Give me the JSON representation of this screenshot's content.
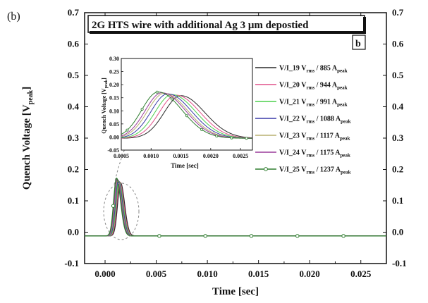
{
  "panel_label": "(b)",
  "chart_data": [
    {
      "type": "line",
      "title": "2G HTS wire with additional Ag 3 μm depostied",
      "corner_label": "b",
      "xlabel": "Time [sec]",
      "ylabel": "Quench Voltage [V",
      "ylabel_sub": "peak",
      "ylabel_end": "]",
      "xlim": [
        -0.002,
        0.0275
      ],
      "ylim": [
        -0.1,
        0.7
      ],
      "xticks": [
        0.0,
        0.005,
        0.01,
        0.015,
        0.02,
        0.025
      ],
      "xtick_labels": [
        "0.000",
        "0.005",
        "0.010",
        "0.015",
        "0.020",
        "0.025"
      ],
      "yticks": [
        -0.1,
        0.0,
        0.1,
        0.2,
        0.3,
        0.4,
        0.5,
        0.6,
        0.7
      ],
      "ytick_labels": [
        "-0.1",
        "0.0",
        "0.1",
        "0.2",
        "0.3",
        "0.4",
        "0.5",
        "0.6",
        "0.7"
      ],
      "legend_position": "right",
      "baseline": -0.012,
      "series": [
        {
          "name_main": "V/I_19 V",
          "name_sub1": "rms",
          "name_mid": " / 885 A",
          "name_sub2": "peak",
          "color": "#2a2a2a",
          "peak_x": 0.0015,
          "peak_y": 0.158,
          "marker": false
        },
        {
          "name_main": "V/I_20 V",
          "name_sub1": "rms",
          "name_mid": " / 944 A",
          "name_sub2": "peak",
          "color": "#e0508a",
          "peak_x": 0.00142,
          "peak_y": 0.16,
          "marker": false
        },
        {
          "name_main": "V/I_21 V",
          "name_sub1": "rms",
          "name_mid": " / 991 A",
          "name_sub2": "peak",
          "color": "#4ccf4c",
          "peak_x": 0.00135,
          "peak_y": 0.162,
          "marker": false
        },
        {
          "name_main": "V/I_22 V",
          "name_sub1": "rms",
          "name_mid": " / 1088 A",
          "name_sub2": "peak",
          "color": "#3a3aa8",
          "peak_x": 0.00128,
          "peak_y": 0.165,
          "marker": false
        },
        {
          "name_main": "V/I_23 V",
          "name_sub1": "rms",
          "name_mid": " / 1117 A",
          "name_sub2": "peak",
          "color": "#b8b070",
          "peak_x": 0.00122,
          "peak_y": 0.167,
          "marker": false
        },
        {
          "name_main": "V/I_24 V",
          "name_sub1": "rms",
          "name_mid": " / 1175 A",
          "name_sub2": "peak",
          "color": "#9a3a9a",
          "peak_x": 0.00118,
          "peak_y": 0.169,
          "marker": false
        },
        {
          "name_main": "V/I_25 V",
          "name_sub1": "rms",
          "name_mid": " / 1237 A",
          "name_sub2": "peak",
          "color": "#2e7d2e",
          "peak_x": 0.00112,
          "peak_y": 0.172,
          "marker": true
        }
      ]
    },
    {
      "type": "line",
      "title": "",
      "xlabel": "Time [sec]",
      "ylabel": "Quench Voltage [V",
      "ylabel_sub": "peak",
      "ylabel_end": "]",
      "xlim": [
        0.0005,
        0.0027
      ],
      "ylim": [
        -0.05,
        0.3
      ],
      "xticks": [
        0.0005,
        0.001,
        0.0015,
        0.002,
        0.0025
      ],
      "xtick_labels": [
        "0.0005",
        "0.0010",
        "0.0015",
        "0.0020",
        "0.0025"
      ],
      "yticks": [
        -0.05,
        0.0,
        0.05,
        0.1,
        0.15,
        0.2,
        0.25,
        0.3
      ],
      "ytick_labels": [
        "-0.05",
        "0.00",
        "0.05",
        "0.10",
        "0.15",
        "0.20",
        "0.25",
        "0.30"
      ]
    }
  ]
}
